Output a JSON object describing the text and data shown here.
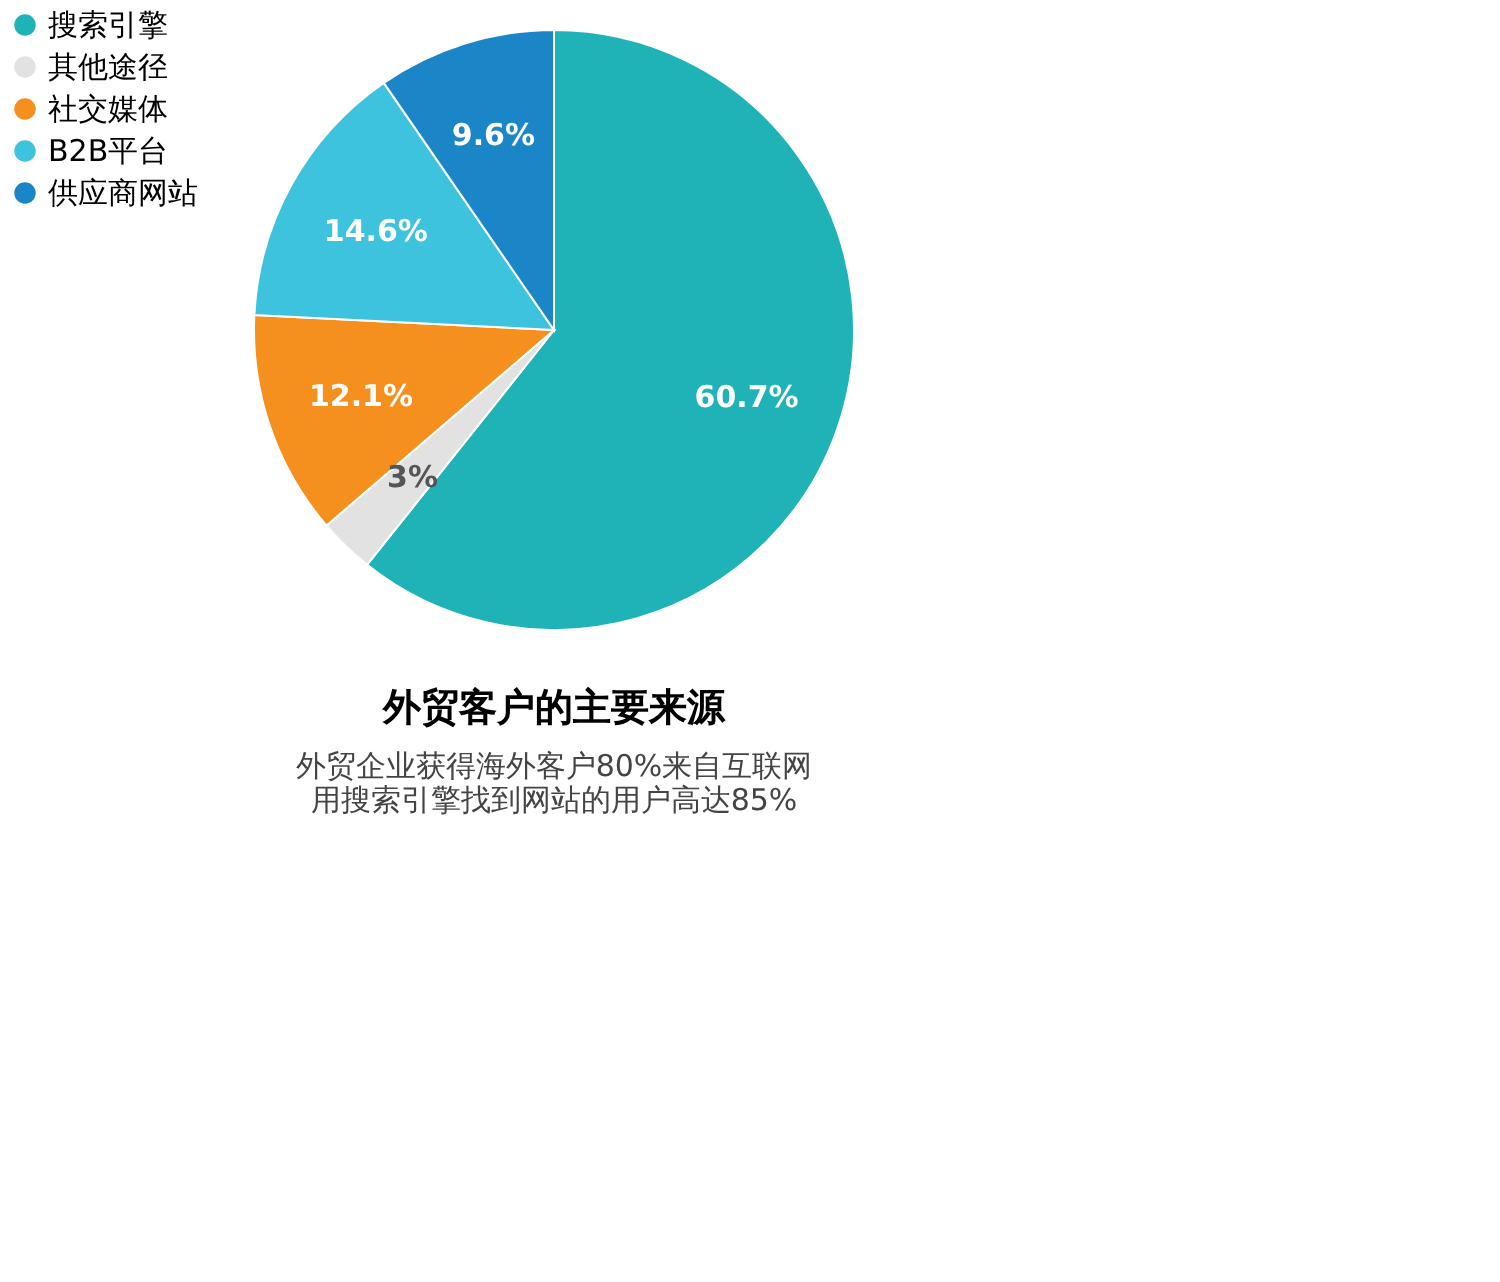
{
  "chart_data": {
    "type": "pie",
    "title": "外贸客户的主要来源",
    "categories": [
      "搜索引擎",
      "其他途径",
      "社交媒体",
      "B2B平台",
      "供应商网站"
    ],
    "values": [
      60.7,
      3,
      12.1,
      14.6,
      9.6
    ],
    "value_labels": [
      "60.7%",
      "3%",
      "12.1%",
      "14.6%",
      "9.6%"
    ],
    "colors": [
      "#1fb3b8",
      "#e2e2e2",
      "#f5901e",
      "#3ec3df",
      "#1a86c8"
    ],
    "legend": "left",
    "annotations": [
      "外贸企业获得海外客户80%来自互联网",
      "用搜索引擎找到网站的用户高达85%"
    ]
  }
}
